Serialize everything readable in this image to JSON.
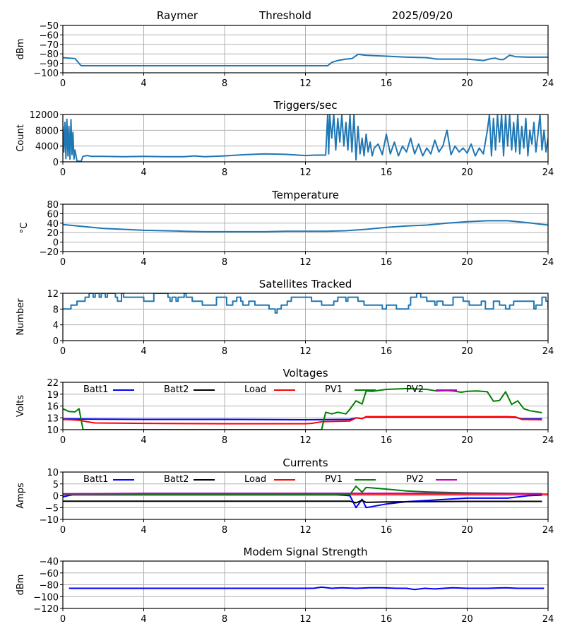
{
  "header": {
    "site": "Raymer",
    "mode": "Threshold",
    "date": "2025/09/20"
  },
  "chart_data": [
    {
      "id": "threshold",
      "type": "line",
      "title": "",
      "xlabel": "",
      "ylabel": "dBm",
      "xlim": [
        0,
        24
      ],
      "ylim": [
        -100,
        -50
      ],
      "xticks": [
        "0",
        "4",
        "8",
        "12",
        "16",
        "20",
        "24"
      ],
      "yticks": [
        -100,
        -90,
        -80,
        -70,
        -60,
        -50
      ],
      "ytick_labels": [
        "−100",
        "−90",
        "−80",
        "−70",
        "−60",
        "−50"
      ],
      "grid": true,
      "series": [
        {
          "name": "Threshold",
          "color": "#1f77b4",
          "x": [
            0,
            0.6,
            0.9,
            2,
            4,
            6,
            8,
            10,
            12,
            13.1,
            13.3,
            13.6,
            14,
            14.3,
            14.6,
            15,
            16,
            17,
            18,
            18.5,
            19,
            20,
            20.8,
            21.2,
            21.4,
            21.6,
            21.8,
            22.1,
            22.4,
            23,
            24
          ],
          "y": [
            -84,
            -85,
            -92.5,
            -92.5,
            -92.5,
            -92.5,
            -92.5,
            -92.5,
            -92.5,
            -92.5,
            -89,
            -87,
            -85.5,
            -85,
            -80.5,
            -81.5,
            -82.5,
            -83.5,
            -84,
            -85.5,
            -85.5,
            -85.5,
            -87,
            -85,
            -84.5,
            -86,
            -86,
            -81.5,
            -83,
            -83.5,
            -83.5
          ]
        }
      ]
    },
    {
      "id": "triggers",
      "type": "line",
      "title": "Triggers/sec",
      "xlabel": "",
      "ylabel": "Count",
      "xlim": [
        0,
        24
      ],
      "ylim": [
        0,
        12000
      ],
      "xticks": [
        "0",
        "4",
        "8",
        "12",
        "16",
        "20",
        "24"
      ],
      "yticks": [
        0,
        4000,
        8000,
        12000
      ],
      "ytick_labels": [
        "0",
        "4000",
        "8000",
        "12000"
      ],
      "grid": true,
      "series": [
        {
          "name": "Triggers",
          "color": "#1f77b4",
          "x": [
            0,
            0.05,
            0.1,
            0.15,
            0.2,
            0.25,
            0.3,
            0.35,
            0.4,
            0.45,
            0.5,
            0.55,
            0.6,
            0.7,
            0.9,
            1.0,
            1.2,
            1.4,
            2,
            3,
            4,
            5,
            6,
            6.5,
            7,
            8,
            9,
            10,
            11,
            12,
            12.5,
            13,
            13.1,
            13.15,
            13.2,
            13.3,
            13.4,
            13.5,
            13.6,
            13.7,
            13.8,
            13.9,
            14.0,
            14.1,
            14.2,
            14.3,
            14.4,
            14.5,
            14.6,
            14.7,
            14.8,
            14.9,
            15.0,
            15.1,
            15.2,
            15.3,
            15.4,
            15.6,
            15.8,
            16.0,
            16.2,
            16.4,
            16.6,
            16.8,
            17.0,
            17.2,
            17.4,
            17.6,
            17.8,
            18.0,
            18.2,
            18.4,
            18.6,
            18.8,
            19.0,
            19.2,
            19.4,
            19.6,
            19.8,
            20.0,
            20.2,
            20.4,
            20.6,
            20.8,
            21.0,
            21.1,
            21.2,
            21.3,
            21.4,
            21.5,
            21.6,
            21.7,
            21.8,
            21.9,
            22.0,
            22.1,
            22.2,
            22.3,
            22.4,
            22.5,
            22.6,
            22.7,
            22.8,
            22.9,
            23.0,
            23.1,
            23.2,
            23.3,
            23.4,
            23.5,
            23.6,
            23.7,
            23.8,
            23.9,
            24.0
          ],
          "y": [
            9000,
            2500,
            10000,
            800,
            10800,
            1500,
            9000,
            700,
            10700,
            1800,
            7500,
            700,
            3000,
            200,
            100,
            1400,
            1600,
            1400,
            1400,
            1300,
            1400,
            1300,
            1300,
            1500,
            1300,
            1500,
            1800,
            2000,
            1900,
            1600,
            1700,
            1700,
            12000,
            2000,
            12000,
            6000,
            12000,
            3000,
            11000,
            5000,
            12000,
            4000,
            10000,
            3000,
            12000,
            2500,
            12000,
            500,
            9000,
            2000,
            6000,
            1500,
            7000,
            2500,
            5000,
            1500,
            3500,
            4500,
            1800,
            7000,
            2000,
            5000,
            1500,
            4000,
            2500,
            6000,
            2000,
            4500,
            1500,
            3500,
            2000,
            5500,
            2500,
            4000,
            8000,
            1800,
            4000,
            2500,
            3500,
            2200,
            4500,
            1500,
            3500,
            2000,
            8000,
            12000,
            1500,
            11000,
            3000,
            12000,
            5000,
            12000,
            1500,
            12000,
            4000,
            12000,
            3000,
            10000,
            2500,
            12000,
            2000,
            9000,
            3500,
            11000,
            1500,
            8000,
            4500,
            10000,
            2500,
            7000,
            12000,
            3000,
            8000,
            2500,
            6000
          ]
        }
      ]
    },
    {
      "id": "temperature",
      "type": "line",
      "title": "Temperature",
      "xlabel": "",
      "ylabel": "°C",
      "xlim": [
        0,
        24
      ],
      "ylim": [
        -20,
        80
      ],
      "xticks": [
        "0",
        "4",
        "8",
        "12",
        "16",
        "20",
        "24"
      ],
      "yticks": [
        -20,
        0,
        20,
        40,
        60,
        80
      ],
      "ytick_labels": [
        "−20",
        "0",
        "20",
        "40",
        "60",
        "80"
      ],
      "grid": true,
      "series": [
        {
          "name": "Temperature",
          "color": "#1f77b4",
          "x": [
            0,
            1,
            2,
            3,
            4,
            5,
            6,
            7,
            8,
            9,
            10,
            11,
            12,
            13,
            14,
            15,
            16,
            17,
            18,
            19,
            20,
            21,
            22,
            23,
            24
          ],
          "y": [
            37,
            33,
            29,
            27,
            25,
            24,
            23,
            22,
            22,
            22,
            22,
            23,
            23,
            23,
            24,
            27,
            31,
            34,
            36,
            40,
            43,
            45,
            45,
            41,
            36
          ]
        }
      ]
    },
    {
      "id": "satellites",
      "type": "line",
      "title": "Satellites Tracked",
      "xlabel": "",
      "ylabel": "Number",
      "xlim": [
        0,
        24
      ],
      "ylim": [
        0,
        12
      ],
      "xticks": [
        "0",
        "4",
        "8",
        "12",
        "16",
        "20",
        "24"
      ],
      "yticks": [
        0,
        4,
        8,
        12
      ],
      "ytick_labels": [
        "0",
        "4",
        "8",
        "12"
      ],
      "grid": true,
      "step": true,
      "series": [
        {
          "name": "Satellites",
          "color": "#1f77b4",
          "x": [
            0,
            0.4,
            0.7,
            1.1,
            1.3,
            1.5,
            1.6,
            1.8,
            1.9,
            2.1,
            2.2,
            2.6,
            2.7,
            2.9,
            3.0,
            3.6,
            4.0,
            4.5,
            5.0,
            5.2,
            5.3,
            5.4,
            5.6,
            5.7,
            6.0,
            6.1,
            6.4,
            6.9,
            7.2,
            7.6,
            8.1,
            8.4,
            8.6,
            8.8,
            8.9,
            9.2,
            9.5,
            9.9,
            10.2,
            10.3,
            10.5,
            10.6,
            10.8,
            11.1,
            11.3,
            11.6,
            12.3,
            12.8,
            13.2,
            13.4,
            13.6,
            14.0,
            14.1,
            14.6,
            14.9,
            15.8,
            16.0,
            16.5,
            17.1,
            17.2,
            17.5,
            17.7,
            18.0,
            18.4,
            18.5,
            18.8,
            19.3,
            19.8,
            20.1,
            20.7,
            20.9,
            21.3,
            21.6,
            21.9,
            22.1,
            22.3,
            23.3,
            23.4,
            23.7,
            23.9,
            24
          ],
          "y": [
            8,
            9,
            10,
            11,
            12,
            11,
            12,
            11,
            12,
            11,
            12,
            11,
            10,
            12,
            11,
            11,
            10,
            12,
            12,
            11,
            10,
            11,
            10,
            11,
            12,
            11,
            10,
            9,
            9,
            11,
            9,
            10,
            11,
            10,
            9,
            10,
            9,
            9,
            8,
            8,
            7,
            8,
            9,
            10,
            11,
            11,
            10,
            9,
            9,
            10,
            11,
            10,
            11,
            10,
            9,
            8,
            9,
            8,
            9,
            11,
            12,
            11,
            10,
            9,
            10,
            9,
            11,
            10,
            9,
            10,
            8,
            10,
            9,
            8,
            9,
            10,
            8,
            9,
            11,
            10,
            8
          ]
        }
      ]
    },
    {
      "id": "voltages",
      "type": "line",
      "title": "Voltages",
      "xlabel": "",
      "ylabel": "Volts",
      "xlim": [
        0,
        24
      ],
      "ylim": [
        10,
        22
      ],
      "xticks": [
        "0",
        "4",
        "8",
        "12",
        "16",
        "20",
        "24"
      ],
      "yticks": [
        10,
        13,
        16,
        19,
        22
      ],
      "ytick_labels": [
        "10",
        "13",
        "16",
        "19",
        "22"
      ],
      "grid": true,
      "legend": "top, inside, horizontal",
      "series": [
        {
          "name": "Batt1",
          "color": "#0000ff",
          "x": [
            0,
            4,
            8,
            12,
            14.2,
            14.5,
            14.8,
            15,
            16,
            20,
            22,
            22.4,
            22.7,
            23.7
          ],
          "y": [
            12.7,
            12.6,
            12.6,
            12.5,
            12.6,
            13,
            12.8,
            13.2,
            13.2,
            13.2,
            13.2,
            13.1,
            12.7,
            12.7
          ]
        },
        {
          "name": "Batt2",
          "color": "#000000",
          "x": [],
          "y": []
        },
        {
          "name": "Load",
          "color": "#ff0000",
          "x": [
            0,
            0.8,
            1.2,
            1.6,
            4,
            8,
            12,
            12.3,
            12.8,
            14.2,
            14.5,
            14.8,
            15,
            16,
            18,
            20,
            21,
            22,
            22.4,
            22.7,
            23.7
          ],
          "y": [
            12.6,
            12.4,
            12,
            11.7,
            11.6,
            11.5,
            11.5,
            11.6,
            12,
            12.2,
            13,
            12.8,
            13.3,
            13.3,
            13.3,
            13.3,
            13.3,
            13.3,
            13.2,
            12.6,
            12.5
          ]
        },
        {
          "name": "PV1",
          "color": "#008000",
          "x": [
            0,
            0.3,
            0.6,
            0.8,
            1.0,
            12.8,
            13.0,
            13.3,
            13.6,
            14.0,
            14.2,
            14.5,
            14.8,
            15,
            15.3,
            16,
            17,
            18,
            18.5,
            19,
            19.3,
            19.7,
            20,
            20.5,
            21,
            21.3,
            21.6,
            21.9,
            22.2,
            22.5,
            22.8,
            23.1,
            23.7
          ],
          "y": [
            15.3,
            14.6,
            14.5,
            15.3,
            10,
            10,
            14.4,
            14,
            14.4,
            14,
            15.2,
            17.3,
            16.5,
            19.8,
            19.7,
            20.2,
            20.4,
            20.2,
            19.8,
            19.9,
            19.8,
            19.5,
            19.7,
            19.8,
            19.6,
            17.2,
            17.4,
            19.6,
            16.4,
            17.3,
            15.3,
            14.8,
            14.3
          ]
        },
        {
          "name": "PV2",
          "color": "#bf00bf",
          "x": [],
          "y": []
        }
      ]
    },
    {
      "id": "currents",
      "type": "line",
      "title": "Currents",
      "xlabel": "",
      "ylabel": "Amps",
      "xlim": [
        0,
        24
      ],
      "ylim": [
        -10,
        10
      ],
      "xticks": [
        "0",
        "4",
        "8",
        "12",
        "16",
        "20",
        "24"
      ],
      "yticks": [
        -10,
        -5,
        0,
        5,
        10
      ],
      "ytick_labels": [
        "−10",
        "−5",
        "0",
        "5",
        "10"
      ],
      "grid": true,
      "legend": "top, inside, horizontal",
      "series": [
        {
          "name": "Batt1",
          "color": "#0000ff",
          "x": [
            0,
            0.5,
            4,
            8,
            12,
            13.5,
            14.2,
            14.5,
            14.8,
            15,
            16,
            17,
            18,
            19,
            20,
            21,
            22,
            22.5,
            23,
            23.7
          ],
          "y": [
            -0.5,
            0.5,
            0.5,
            0.5,
            0.5,
            0.5,
            0,
            -5,
            -1.5,
            -5,
            -3.5,
            -2.5,
            -2,
            -1.5,
            -1,
            -1,
            -1,
            -0.5,
            0,
            0.3
          ]
        },
        {
          "name": "Batt2",
          "color": "#000000",
          "x": [
            0,
            4,
            8,
            12,
            14.2,
            14.5,
            14.8,
            15,
            16,
            18,
            20,
            22,
            23.7
          ],
          "y": [
            -2.3,
            -2.3,
            -2.3,
            -2.3,
            -2.3,
            -3,
            -2,
            -2.8,
            -2.6,
            -2.5,
            -2.4,
            -2.4,
            -2.4
          ]
        },
        {
          "name": "Load",
          "color": "#ff0000",
          "x": [
            0,
            24
          ],
          "y": [
            0.7,
            0.7
          ]
        },
        {
          "name": "PV1",
          "color": "#008000",
          "x": [
            0,
            4,
            8,
            12,
            14.2,
            14.5,
            14.8,
            15,
            16,
            17,
            18,
            20,
            22,
            23.7
          ],
          "y": [
            0.5,
            0.5,
            0.5,
            0.5,
            0.5,
            4,
            1.5,
            3.5,
            2.8,
            2,
            1.6,
            1.2,
            1,
            0.8
          ]
        },
        {
          "name": "PV2",
          "color": "#bf00bf",
          "x": [
            0,
            4,
            8,
            12,
            16,
            20,
            23.7
          ],
          "y": [
            0.8,
            1,
            1,
            1,
            1,
            1,
            0.8
          ]
        }
      ]
    },
    {
      "id": "modem",
      "type": "line",
      "title": "Modem Signal Strength",
      "xlabel": "",
      "ylabel": "dBm",
      "xlim": [
        0,
        24
      ],
      "ylim": [
        -120,
        -40
      ],
      "xticks": [
        "0",
        "4",
        "8",
        "12",
        "16",
        "20",
        "24"
      ],
      "yticks": [
        -120,
        -100,
        -80,
        -60,
        -40
      ],
      "ytick_labels": [
        "−120",
        "−100",
        "−80",
        "−60",
        "−40"
      ],
      "grid": true,
      "series": [
        {
          "name": "Modem",
          "color": "#0000ff",
          "x": [
            0.3,
            4,
            8,
            12,
            12.4,
            12.8,
            13.3,
            13.8,
            14.5,
            15.2,
            15.8,
            16.5,
            17,
            17.4,
            17.9,
            18.4,
            19.3,
            20,
            21,
            21.9,
            22.5,
            23.8
          ],
          "y": [
            -86,
            -86,
            -86,
            -86,
            -86,
            -84,
            -86,
            -85,
            -86,
            -85,
            -85,
            -86,
            -86,
            -88,
            -86,
            -87,
            -85,
            -86,
            -86,
            -85,
            -86,
            -86
          ]
        }
      ]
    }
  ]
}
